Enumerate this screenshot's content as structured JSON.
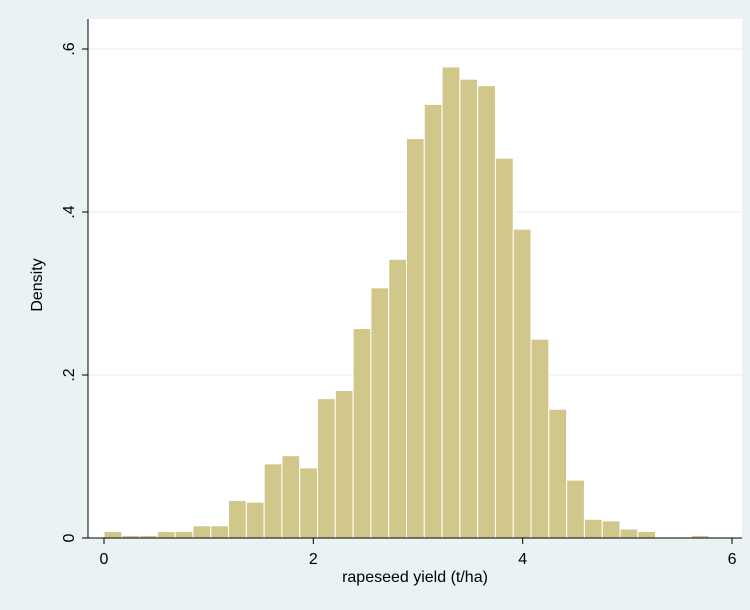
{
  "chart_data": {
    "type": "bar",
    "title": "",
    "xlabel": "rapeseed yield (t/ha)",
    "ylabel": "Density",
    "xlim": [
      0,
      6
    ],
    "ylim": [
      0,
      0.6
    ],
    "x_ticks": [
      0,
      2,
      4,
      6
    ],
    "x_tick_labels": [
      "0",
      "2",
      "4",
      "6"
    ],
    "y_ticks": [
      0,
      0.2,
      0.4,
      0.6
    ],
    "y_tick_labels": [
      "0",
      ".2",
      ".4",
      ".6"
    ],
    "grid": true,
    "bin_width": 0.17,
    "bin_starts": [
      0.0,
      0.17,
      0.34,
      0.51,
      0.68,
      0.85,
      1.02,
      1.19,
      1.36,
      1.53,
      1.7,
      1.87,
      2.04,
      2.21,
      2.38,
      2.55,
      2.72,
      2.89,
      3.06,
      3.23,
      3.4,
      3.57,
      3.74,
      3.91,
      4.08,
      4.25,
      4.42,
      4.59,
      4.76,
      4.93,
      5.1,
      5.27,
      5.44,
      5.61
    ],
    "values": [
      0.008,
      0.003,
      0.003,
      0.008,
      0.008,
      0.015,
      0.015,
      0.046,
      0.044,
      0.091,
      0.101,
      0.086,
      0.171,
      0.181,
      0.257,
      0.307,
      0.342,
      0.49,
      0.532,
      0.578,
      0.563,
      0.555,
      0.466,
      0.379,
      0.244,
      0.158,
      0.071,
      0.023,
      0.021,
      0.011,
      0.008,
      0.001,
      0.0,
      0.003
    ],
    "bar_color": "#d2c78a",
    "bar_edge_color": "#ffffff"
  },
  "colors": {
    "outer_background": "#eaf2f3",
    "plot_background": "#ffffff",
    "grid": "#e3ecee"
  }
}
